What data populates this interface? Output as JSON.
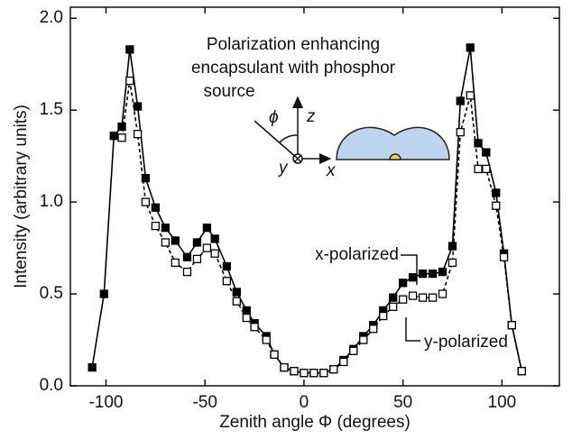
{
  "chart_data": {
    "type": "line",
    "xlabel": "Zenith angle Φ (degrees)",
    "ylabel": "Intensity (arbitrary units)",
    "annotation": [
      "Polarization enhancing",
      "encapsulant with phosphor",
      "source"
    ],
    "inset_labels": {
      "phi": "ϕ",
      "z": "z",
      "y": "y",
      "x": "x"
    },
    "xlim": [
      -118,
      129
    ],
    "ylim": [
      0,
      2.06
    ],
    "xticks": [
      -100,
      -50,
      0,
      50,
      100
    ],
    "yticks": [
      {
        "value": 0,
        "label": "0.0"
      },
      {
        "value": 0.5,
        "label": "0.5"
      },
      {
        "value": 1,
        "label": "1.0"
      },
      {
        "value": 1.5,
        "label": "1.5"
      },
      {
        "value": 2,
        "label": "2.0"
      }
    ],
    "series": [
      {
        "name": "x-polarized",
        "color": "#000000",
        "linestyle": "solid",
        "marker": "filled-square",
        "x": [
          -107,
          -101,
          -96,
          -92,
          -88,
          -84,
          -80,
          -75,
          -70,
          -65,
          -59,
          -54,
          -49,
          -45,
          -39,
          -34,
          -29,
          -25,
          -19,
          -15,
          -10,
          -5,
          0,
          5,
          10,
          15,
          20,
          25,
          30,
          35,
          40,
          45,
          50,
          55,
          60,
          65,
          70,
          75,
          79,
          84,
          88,
          92,
          97,
          101,
          105,
          110
        ],
        "values": [
          0.1,
          0.5,
          1.36,
          1.41,
          1.83,
          1.52,
          1.13,
          0.97,
          0.86,
          0.79,
          0.7,
          0.78,
          0.86,
          0.8,
          0.65,
          0.51,
          0.41,
          0.34,
          0.27,
          0.17,
          0.1,
          0.08,
          0.07,
          0.07,
          0.07,
          0.09,
          0.14,
          0.2,
          0.27,
          0.33,
          0.41,
          0.48,
          0.56,
          0.59,
          0.61,
          0.61,
          0.62,
          0.76,
          1.55,
          1.84,
          1.32,
          1.27,
          1.05,
          0.72,
          0.33,
          0.08
        ]
      },
      {
        "name": "y-polarized",
        "color": "#000000",
        "linestyle": "dashed",
        "marker": "open-square",
        "x": [
          -92,
          -88,
          -84,
          -80,
          -75,
          -70,
          -65,
          -59,
          -54,
          -49,
          -45,
          -39,
          -34,
          -29,
          -25,
          -19,
          -15,
          -10,
          -5,
          0,
          5,
          10,
          15,
          20,
          25,
          30,
          35,
          40,
          45,
          50,
          55,
          60,
          65,
          70,
          75,
          79,
          84,
          88,
          92,
          97,
          101,
          105,
          110
        ],
        "values": [
          1.35,
          1.66,
          1.37,
          1.0,
          0.87,
          0.78,
          0.67,
          0.62,
          0.69,
          0.75,
          0.72,
          0.57,
          0.46,
          0.37,
          0.32,
          0.25,
          0.17,
          0.1,
          0.08,
          0.07,
          0.07,
          0.07,
          0.09,
          0.13,
          0.19,
          0.25,
          0.31,
          0.38,
          0.43,
          0.47,
          0.49,
          0.48,
          0.48,
          0.5,
          0.67,
          1.38,
          1.58,
          1.18,
          1.18,
          0.98,
          0.7,
          0.33,
          0.08
        ]
      }
    ]
  }
}
